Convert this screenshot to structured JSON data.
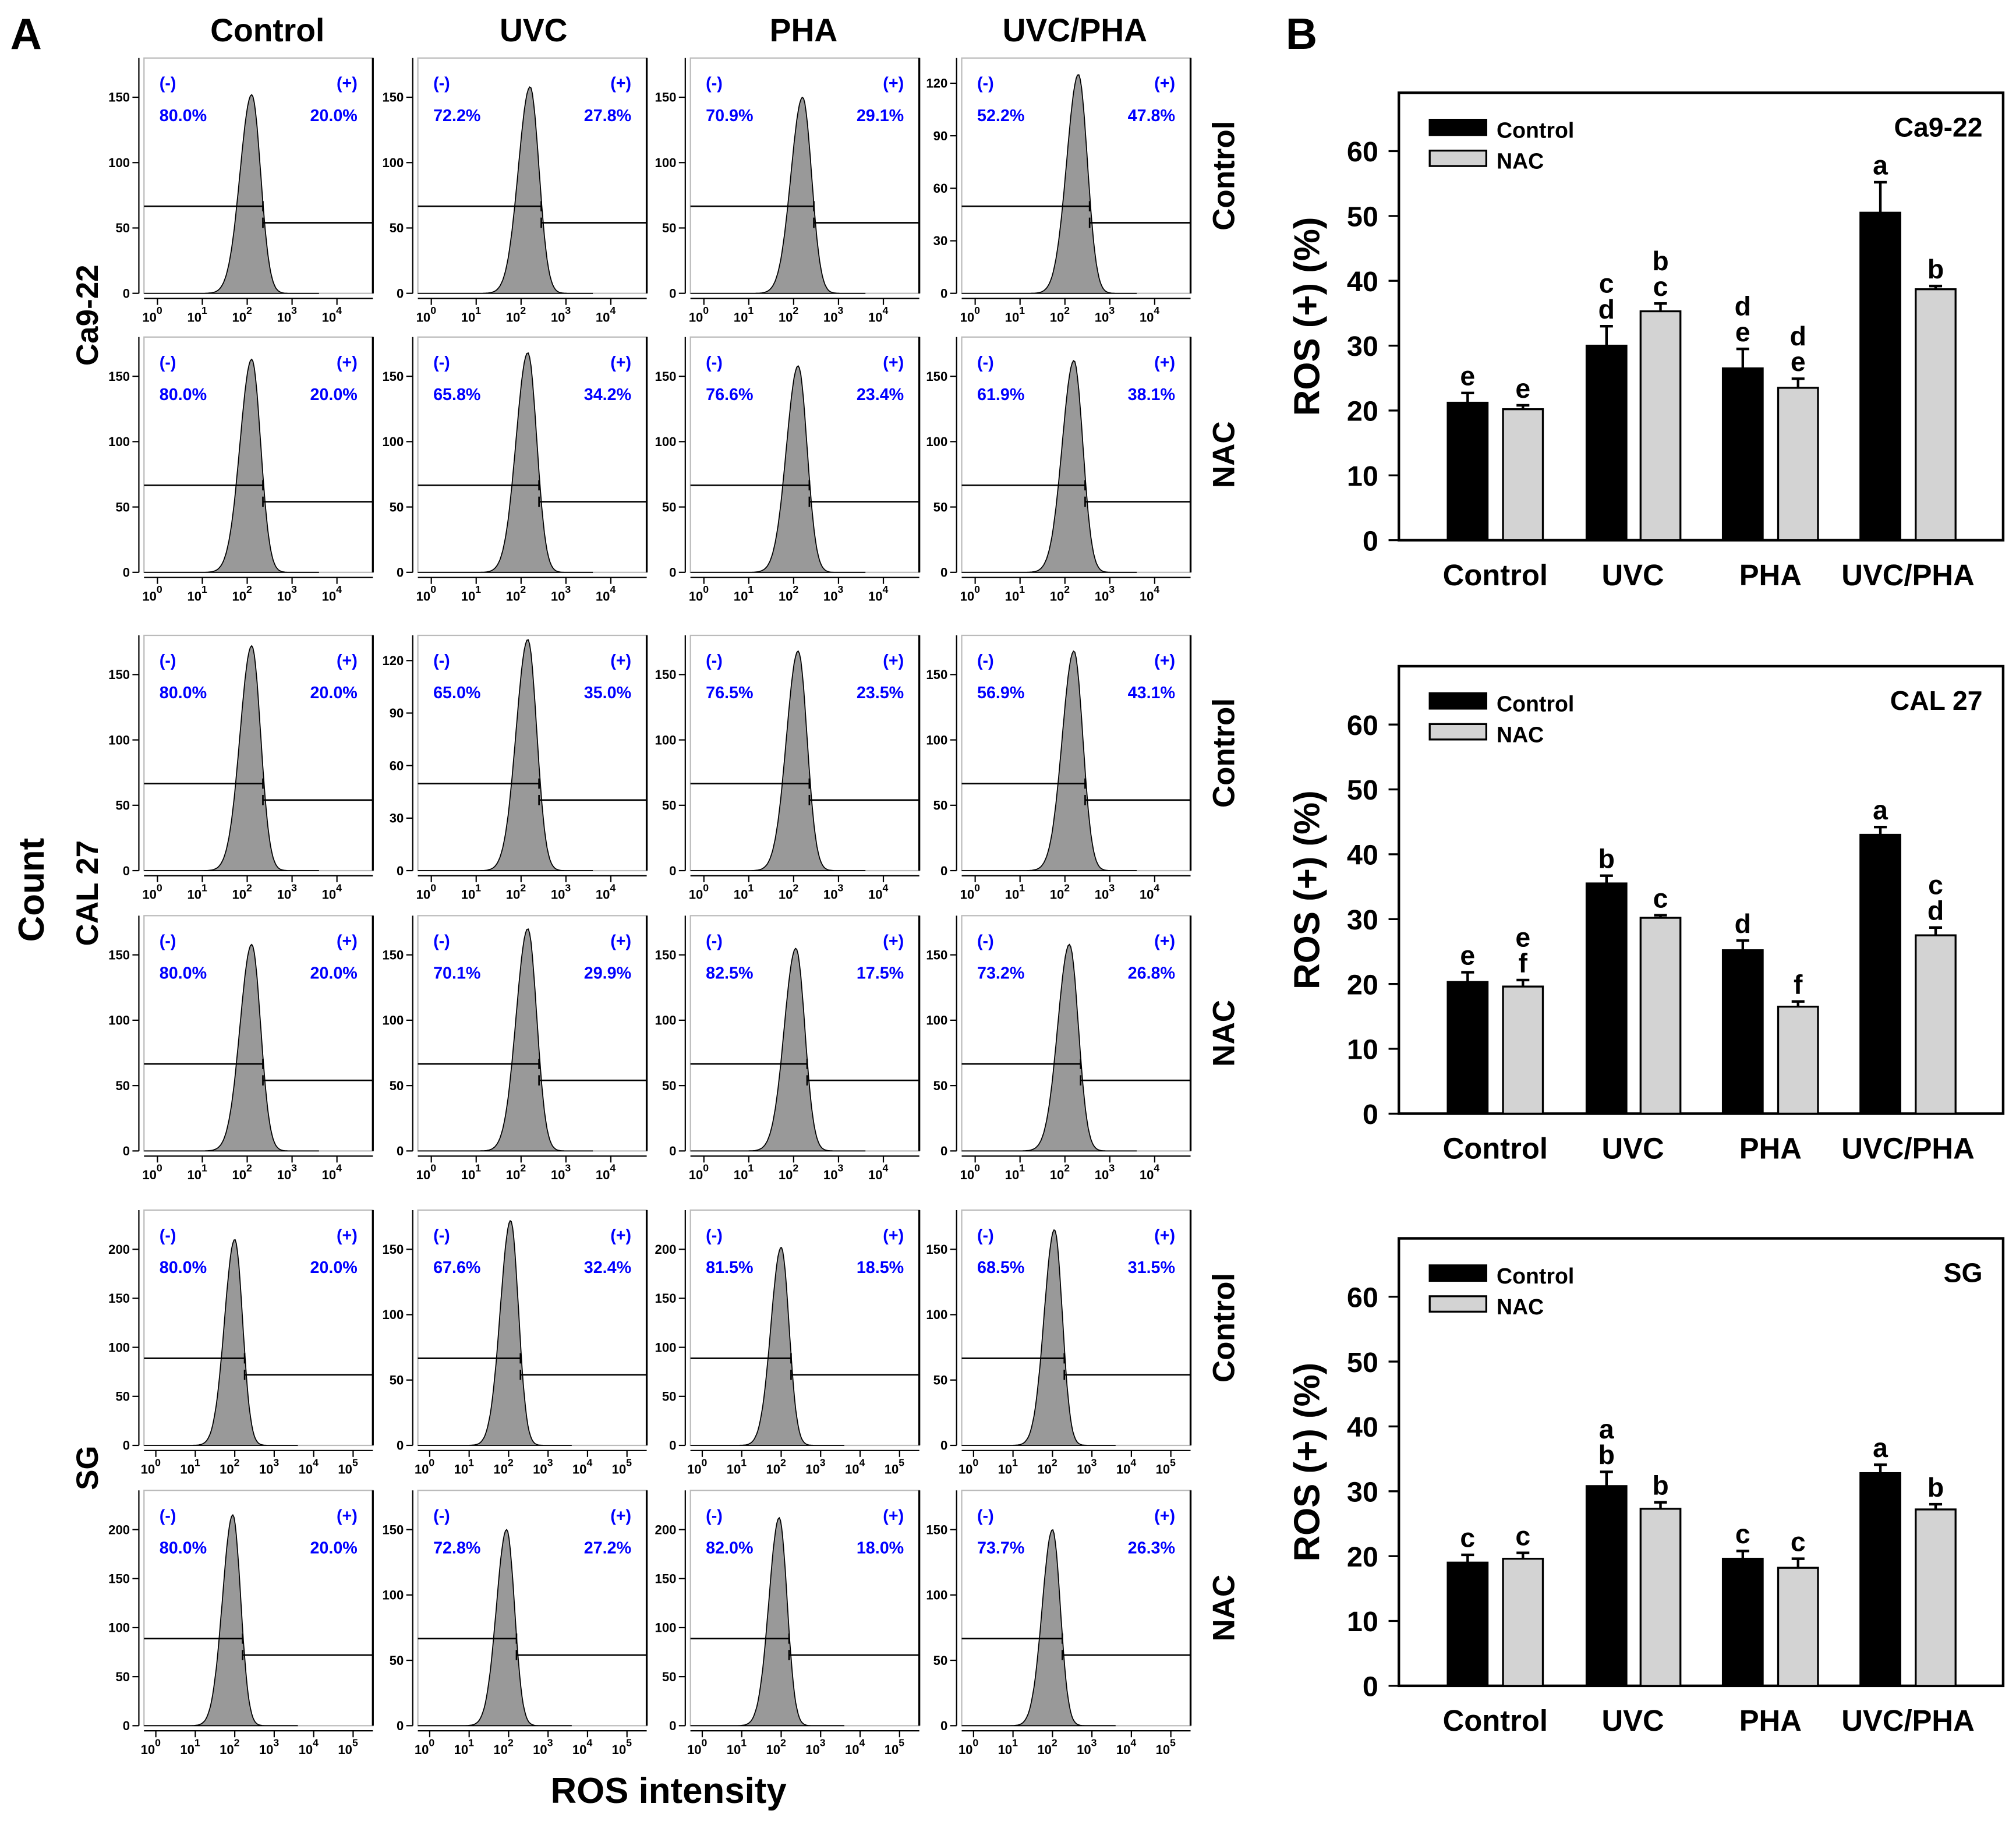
{
  "panel_labels": {
    "a": "A",
    "b": "B"
  },
  "histogram_grid": {
    "columns": [
      "Control",
      "UVC",
      "PHA",
      "UVC/PHA"
    ],
    "y_label": "Count",
    "x_label": "ROS intensity",
    "neg_label": "(-)",
    "pos_label": "(+)",
    "tick_base": "10",
    "groups": [
      {
        "cell_line": "Ca9-22",
        "x_exponents": [
          0,
          1,
          2,
          3,
          4
        ],
        "rows": [
          {
            "treatment": "Control",
            "panels": [
              {
                "neg": "80.0%",
                "pos": "20.0%",
                "yticks": [
                  "0",
                  "50",
                  "100",
                  "150"
                ],
                "peak": 152,
                "mu": 2.1
              },
              {
                "neg": "72.2%",
                "pos": "27.8%",
                "yticks": [
                  "0",
                  "50",
                  "100",
                  "150"
                ],
                "peak": 158,
                "mu": 2.2
              },
              {
                "neg": "70.9%",
                "pos": "29.1%",
                "yticks": [
                  "0",
                  "50",
                  "100",
                  "150"
                ],
                "peak": 150,
                "mu": 2.2
              },
              {
                "neg": "52.2%",
                "pos": "47.8%",
                "yticks": [
                  "0",
                  "30",
                  "60",
                  "90",
                  "120"
                ],
                "peak": 125,
                "mu": 2.3
              }
            ]
          },
          {
            "treatment": "NAC",
            "panels": [
              {
                "neg": "80.0%",
                "pos": "20.0%",
                "yticks": [
                  "0",
                  "50",
                  "100",
                  "150"
                ],
                "peak": 163,
                "mu": 2.1
              },
              {
                "neg": "65.8%",
                "pos": "34.2%",
                "yticks": [
                  "0",
                  "50",
                  "100",
                  "150"
                ],
                "peak": 168,
                "mu": 2.15
              },
              {
                "neg": "76.6%",
                "pos": "23.4%",
                "yticks": [
                  "0",
                  "50",
                  "100",
                  "150"
                ],
                "peak": 158,
                "mu": 2.1
              },
              {
                "neg": "61.9%",
                "pos": "38.1%",
                "yticks": [
                  "0",
                  "50",
                  "100",
                  "150"
                ],
                "peak": 162,
                "mu": 2.2
              }
            ]
          }
        ]
      },
      {
        "cell_line": "CAL 27",
        "x_exponents": [
          0,
          1,
          2,
          3,
          4
        ],
        "rows": [
          {
            "treatment": "Control",
            "panels": [
              {
                "neg": "80.0%",
                "pos": "20.0%",
                "yticks": [
                  "0",
                  "50",
                  "100",
                  "150"
                ],
                "peak": 172,
                "mu": 2.1
              },
              {
                "neg": "65.0%",
                "pos": "35.0%",
                "yticks": [
                  "0",
                  "30",
                  "60",
                  "90",
                  "120"
                ],
                "peak": 132,
                "mu": 2.15
              },
              {
                "neg": "76.5%",
                "pos": "23.5%",
                "yticks": [
                  "0",
                  "50",
                  "100",
                  "150"
                ],
                "peak": 168,
                "mu": 2.1
              },
              {
                "neg": "56.9%",
                "pos": "43.1%",
                "yticks": [
                  "0",
                  "50",
                  "100",
                  "150"
                ],
                "peak": 168,
                "mu": 2.2
              }
            ]
          },
          {
            "treatment": "NAC",
            "panels": [
              {
                "neg": "80.0%",
                "pos": "20.0%",
                "yticks": [
                  "0",
                  "50",
                  "100",
                  "150"
                ],
                "peak": 158,
                "mu": 2.1
              },
              {
                "neg": "70.1%",
                "pos": "29.9%",
                "yticks": [
                  "0",
                  "50",
                  "100",
                  "150"
                ],
                "peak": 170,
                "mu": 2.15
              },
              {
                "neg": "82.5%",
                "pos": "17.5%",
                "yticks": [
                  "0",
                  "50",
                  "100",
                  "150"
                ],
                "peak": 155,
                "mu": 2.05
              },
              {
                "neg": "73.2%",
                "pos": "26.8%",
                "yticks": [
                  "0",
                  "50",
                  "100",
                  "150"
                ],
                "peak": 158,
                "mu": 2.1
              }
            ]
          }
        ]
      },
      {
        "cell_line": "SG",
        "x_exponents": [
          0,
          1,
          2,
          3,
          4,
          5
        ],
        "rows": [
          {
            "treatment": "Control",
            "panels": [
              {
                "neg": "80.0%",
                "pos": "20.0%",
                "yticks": [
                  "0",
                  "50",
                  "100",
                  "150",
                  "200"
                ],
                "peak": 210,
                "mu": 2.0
              },
              {
                "neg": "67.6%",
                "pos": "32.4%",
                "yticks": [
                  "0",
                  "50",
                  "100",
                  "150"
                ],
                "peak": 172,
                "mu": 2.05
              },
              {
                "neg": "81.5%",
                "pos": "18.5%",
                "yticks": [
                  "0",
                  "50",
                  "100",
                  "150",
                  "200"
                ],
                "peak": 202,
                "mu": 2.0
              },
              {
                "neg": "68.5%",
                "pos": "31.5%",
                "yticks": [
                  "0",
                  "50",
                  "100",
                  "150"
                ],
                "peak": 165,
                "mu": 2.05
              }
            ]
          },
          {
            "treatment": "NAC",
            "panels": [
              {
                "neg": "80.0%",
                "pos": "20.0%",
                "yticks": [
                  "0",
                  "50",
                  "100",
                  "150",
                  "200"
                ],
                "peak": 215,
                "mu": 1.95
              },
              {
                "neg": "72.8%",
                "pos": "27.2%",
                "yticks": [
                  "0",
                  "50",
                  "100",
                  "150"
                ],
                "peak": 150,
                "mu": 1.95
              },
              {
                "neg": "82.0%",
                "pos": "18.0%",
                "yticks": [
                  "0",
                  "50",
                  "100",
                  "150",
                  "200"
                ],
                "peak": 212,
                "mu": 1.95
              },
              {
                "neg": "73.7%",
                "pos": "26.3%",
                "yticks": [
                  "0",
                  "50",
                  "100",
                  "150"
                ],
                "peak": 150,
                "mu": 2.0
              }
            ]
          }
        ]
      }
    ]
  },
  "chart_data": [
    {
      "type": "bar",
      "title": "Ca9-22",
      "ylabel": "ROS (+) (%)",
      "xlabel": "",
      "ylim": [
        0,
        69
      ],
      "yticks": [
        "0",
        "10",
        "20",
        "30",
        "40",
        "50",
        "60"
      ],
      "categories": [
        "Control",
        "UVC",
        "PHA",
        "UVC/PHA"
      ],
      "legend": "top-left",
      "series": [
        {
          "name": "Control",
          "color": "#000000",
          "values": [
            21.2,
            30.0,
            26.5,
            50.5
          ],
          "errors": [
            1.5,
            3.0,
            3.0,
            4.7
          ],
          "letters": [
            [
              "e"
            ],
            [
              "c",
              "d"
            ],
            [
              "d",
              "e"
            ],
            [
              "a"
            ]
          ]
        },
        {
          "name": "NAC",
          "color": "#d3d3d3",
          "values": [
            20.2,
            35.3,
            23.5,
            38.7
          ],
          "errors": [
            0.6,
            1.2,
            1.4,
            0.5
          ],
          "letters": [
            [
              "e"
            ],
            [
              "b",
              "c"
            ],
            [
              "d",
              "e"
            ],
            [
              "b"
            ]
          ]
        }
      ]
    },
    {
      "type": "bar",
      "title": "CAL 27",
      "ylabel": "ROS (+) (%)",
      "xlabel": "",
      "ylim": [
        0,
        69
      ],
      "yticks": [
        "0",
        "10",
        "20",
        "30",
        "40",
        "50",
        "60"
      ],
      "categories": [
        "Control",
        "UVC",
        "PHA",
        "UVC/PHA"
      ],
      "legend": "top-left",
      "series": [
        {
          "name": "Control",
          "color": "#000000",
          "values": [
            20.3,
            35.5,
            25.2,
            43.0
          ],
          "errors": [
            1.5,
            1.2,
            1.5,
            1.2
          ],
          "letters": [
            [
              "e"
            ],
            [
              "b"
            ],
            [
              "d"
            ],
            [
              "a"
            ]
          ]
        },
        {
          "name": "NAC",
          "color": "#d3d3d3",
          "values": [
            19.6,
            30.2,
            16.5,
            27.5
          ],
          "errors": [
            1.0,
            0.4,
            0.8,
            1.2
          ],
          "letters": [
            [
              "e",
              "f"
            ],
            [
              "c"
            ],
            [
              "f"
            ],
            [
              "c",
              "d"
            ]
          ]
        }
      ]
    },
    {
      "type": "bar",
      "title": "SG",
      "ylabel": "ROS (+) (%)",
      "xlabel": "",
      "ylim": [
        0,
        69
      ],
      "yticks": [
        "0",
        "10",
        "20",
        "30",
        "40",
        "50",
        "60"
      ],
      "categories": [
        "Control",
        "UVC",
        "PHA",
        "UVC/PHA"
      ],
      "legend": "top-left",
      "series": [
        {
          "name": "Control",
          "color": "#000000",
          "values": [
            19.0,
            30.8,
            19.6,
            32.8
          ],
          "errors": [
            1.2,
            2.2,
            1.2,
            1.3
          ],
          "letters": [
            [
              "c"
            ],
            [
              "a",
              "b"
            ],
            [
              "c"
            ],
            [
              "a"
            ]
          ]
        },
        {
          "name": "NAC",
          "color": "#d3d3d3",
          "values": [
            19.6,
            27.3,
            18.2,
            27.2
          ],
          "errors": [
            0.9,
            1.0,
            1.4,
            0.8
          ],
          "letters": [
            [
              "c"
            ],
            [
              "b"
            ],
            [
              "c"
            ],
            [
              "b"
            ]
          ]
        }
      ]
    }
  ],
  "colors": {
    "percent_text": "#0000ff",
    "histogram_fill": "#999999"
  }
}
